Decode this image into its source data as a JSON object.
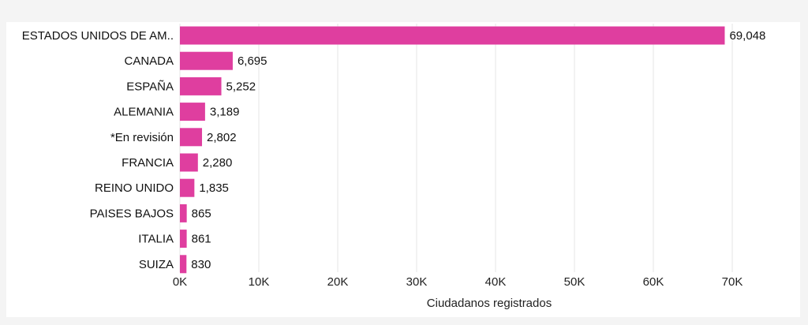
{
  "chart_data": {
    "type": "bar",
    "orientation": "horizontal",
    "categories": [
      "ESTADOS UNIDOS DE AM..",
      "CANADA",
      "ESPAÑA",
      "ALEMANIA",
      "*En revisión",
      "FRANCIA",
      "REINO UNIDO",
      "PAISES BAJOS",
      "ITALIA",
      "SUIZA"
    ],
    "values": [
      69048,
      6695,
      5252,
      3189,
      2802,
      2280,
      1835,
      865,
      861,
      830
    ],
    "value_labels": [
      "69,048",
      "6,695",
      "5,252",
      "3,189",
      "2,802",
      "2,280",
      "1,835",
      "865",
      "861",
      "830"
    ],
    "xlabel": "Ciudadanos registrados",
    "xlim": [
      0,
      70000
    ],
    "xticks": [
      0,
      10000,
      20000,
      30000,
      40000,
      50000,
      60000,
      70000
    ],
    "xtick_labels": [
      "0K",
      "10K",
      "20K",
      "30K",
      "40K",
      "50K",
      "60K",
      "70K"
    ],
    "grid": true,
    "bar_color": "#df3e9f",
    "grid_color": "#e6e6e6"
  }
}
